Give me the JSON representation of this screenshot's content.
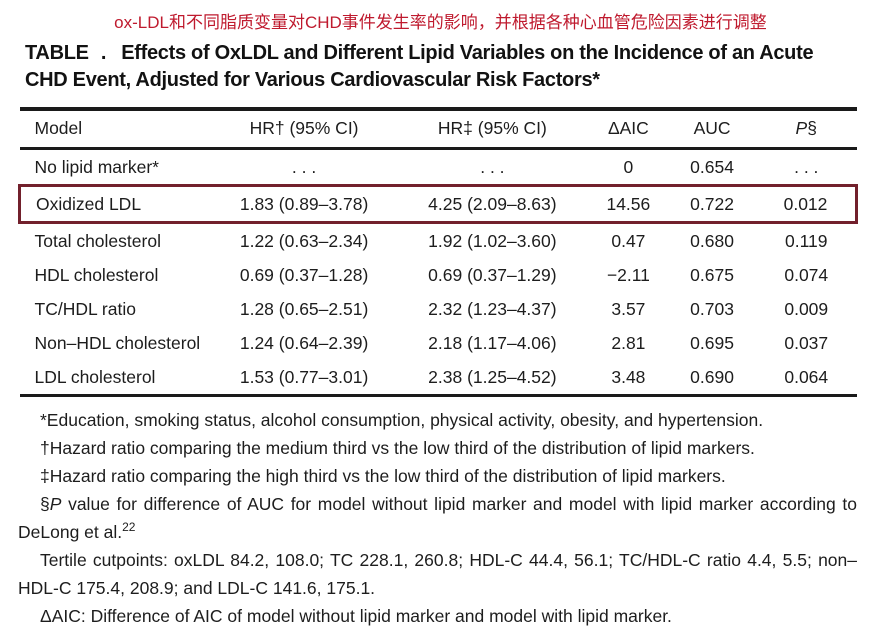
{
  "annotation": {
    "text": "ox-LDL和不同脂质变量对CHD事件发生率的影响，并根据各种心血管危险因素进行调整",
    "color": "#bf1a2e"
  },
  "title": {
    "label": "TABLE .",
    "text": "Effects of OxLDL and Different Lipid Variables on the Incidence of an Acute CHD Event, Adjusted for Various Cardiovascular Risk Factors*"
  },
  "table": {
    "columns": [
      "Model",
      "HR† (95% CI)",
      "HR‡ (95% CI)",
      "ΔAIC",
      "AUC"
    ],
    "p_column": {
      "italic": "P",
      "suffix": "§"
    },
    "highlight_color": "#72202c",
    "highlighted_model": "Oxidized LDL",
    "rows": [
      {
        "model": "No lipid marker*",
        "hr_medium": ". . .",
        "hr_high": ". . .",
        "delta_aic": "0",
        "auc": "0.654",
        "p": ". . .",
        "highlighted": false
      },
      {
        "model": "Oxidized LDL",
        "hr_medium": "1.83 (0.89–3.78)",
        "hr_high": "4.25 (2.09–8.63)",
        "delta_aic": "14.56",
        "auc": "0.722",
        "p": "0.012",
        "highlighted": true
      },
      {
        "model": "Total cholesterol",
        "hr_medium": "1.22 (0.63–2.34)",
        "hr_high": "1.92 (1.02–3.60)",
        "delta_aic": "0.47",
        "auc": "0.680",
        "p": "0.119",
        "highlighted": false
      },
      {
        "model": "HDL cholesterol",
        "hr_medium": "0.69 (0.37–1.28)",
        "hr_high": "0.69 (0.37–1.29)",
        "delta_aic": "−2.11",
        "auc": "0.675",
        "p": "0.074",
        "highlighted": false
      },
      {
        "model": "TC/HDL ratio",
        "hr_medium": "1.28 (0.65–2.51)",
        "hr_high": "2.32 (1.23–4.37)",
        "delta_aic": "3.57",
        "auc": "0.703",
        "p": "0.009",
        "highlighted": false
      },
      {
        "model": "Non–HDL cholesterol",
        "hr_medium": "1.24 (0.64–2.39)",
        "hr_high": "2.18 (1.17–4.06)",
        "delta_aic": "2.81",
        "auc": "0.695",
        "p": "0.037",
        "highlighted": false
      },
      {
        "model": "LDL cholesterol",
        "hr_medium": "1.53 (0.77–3.01)",
        "hr_high": "2.38 (1.25–4.52)",
        "delta_aic": "3.48",
        "auc": "0.690",
        "p": "0.064",
        "highlighted": false
      }
    ]
  },
  "footnotes": {
    "adjustments": "*Education, smoking status, alcohol consumption, physical activity, obesity, and hypertension.",
    "hr_medium": "†Hazard ratio comparing the medium third vs the low third of the distribution of lipid markers.",
    "hr_high": "‡Hazard ratio comparing the high third vs the low third of the distribution of lipid markers.",
    "p_value": {
      "prefix": "§",
      "italic": "P",
      "text": " value for difference of AUC for model without lipid marker and model with lipid marker according to DeLong et al.",
      "ref": "22"
    },
    "tertiles": "Tertile cutpoints: oxLDL 84.2, 108.0; TC 228.1, 260.8; HDL-C 44.4, 56.1; TC/HDL-C ratio 4.4, 5.5; non–HDL-C 175.4, 208.9; and LDL-C 141.6, 175.1.",
    "delta_aic": "ΔAIC: Difference of AIC of model without lipid marker and model with lipid marker."
  }
}
